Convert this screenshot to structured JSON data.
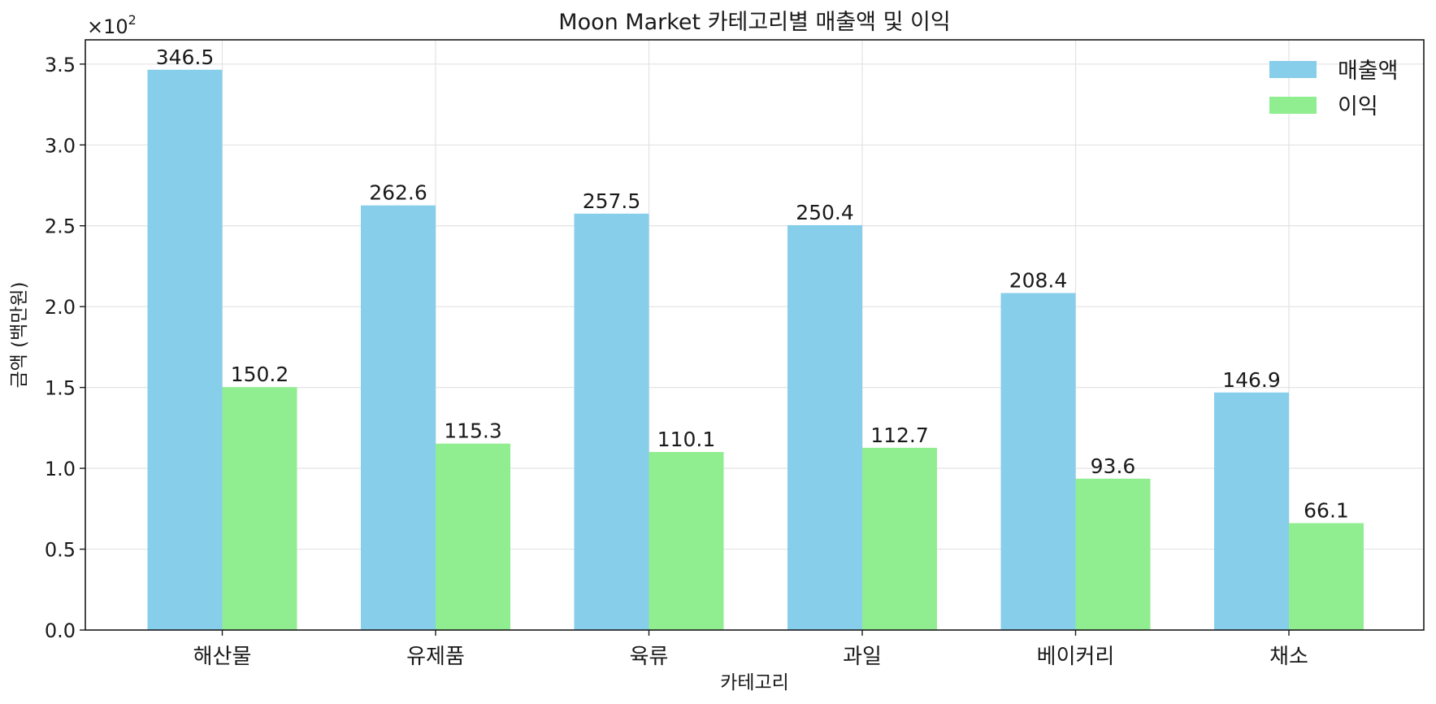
{
  "chart_data": {
    "type": "bar",
    "title": "Moon Market 카테고리별 매출액 및 이익",
    "xlabel": "카테고리",
    "ylabel": "금액 (백만원)",
    "y_multiplier_label": "×10",
    "y_multiplier_exponent": "2",
    "categories": [
      "해산물",
      "유제품",
      "육류",
      "과일",
      "베이커리",
      "채소"
    ],
    "series": [
      {
        "name": "매출액",
        "color": "#87ceeb",
        "values": [
          346.5,
          262.6,
          257.5,
          250.4,
          208.4,
          146.9
        ],
        "labels": [
          "346.5",
          "262.6",
          "257.5",
          "250.4",
          "208.4",
          "146.9"
        ]
      },
      {
        "name": "이익",
        "color": "#90ee90",
        "values": [
          150.2,
          115.3,
          110.1,
          112.7,
          93.6,
          66.1
        ],
        "labels": [
          "150.2",
          "115.3",
          "110.1",
          "112.7",
          "93.6",
          "66.1"
        ]
      }
    ],
    "ylim": [
      0,
      365
    ],
    "yticks": [
      0,
      50,
      100,
      150,
      200,
      250,
      300,
      350
    ],
    "ytick_labels": [
      "0.0",
      "0.5",
      "1.0",
      "1.5",
      "2.0",
      "2.5",
      "3.0",
      "3.5"
    ],
    "grid": true,
    "legend_position": "top-right"
  }
}
